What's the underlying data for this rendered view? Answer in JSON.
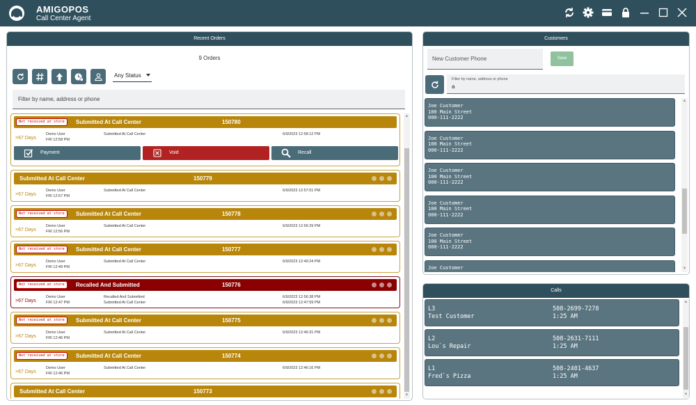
{
  "app": {
    "title": "AMIGOPOS",
    "subtitle": "Call Center Agent"
  },
  "titlebar_icons": [
    "sync-icon",
    "gear-icon",
    "card-icon",
    "lock-icon",
    "minimize-icon",
    "maximize-icon",
    "close-icon"
  ],
  "orders": {
    "header": "Recent Orders",
    "count": "9 Orders",
    "status_filter": "Any Status",
    "filter_placeholder": "Filter by name, address or phone",
    "toolbar_icons": [
      "refresh-icon",
      "hash-icon",
      "upload-icon",
      "clock-icon",
      "person-icon"
    ],
    "actions": {
      "payment": "Payment",
      "void": "Void",
      "recall": "Recall"
    },
    "items": [
      {
        "badge": "Not received at store",
        "status": "Submitted At Call Center",
        "number": "150780",
        "age": ">67 Days",
        "user": "Demo User",
        "time": "FRI 12:58 PM",
        "info": [
          "Submitted At Call Center"
        ],
        "dates": [
          "6/9/2023 12:58:12 PM"
        ],
        "color": "#b8860b"
      },
      {
        "badge": "",
        "status": "Submitted At Call Center",
        "number": "150779",
        "age": ">67 Days",
        "user": "Demo User",
        "time": "FRI 12:57 PM",
        "info": [
          "Submitted At Call Center"
        ],
        "dates": [
          "6/9/2023 12:57:01 PM"
        ],
        "color": "#b8860b"
      },
      {
        "badge": "Not received at store",
        "status": "Submitted At Call Center",
        "number": "150778",
        "age": ">67 Days",
        "user": "Demo User",
        "time": "FRI 12:56 PM",
        "info": [
          "Submitted At Call Center"
        ],
        "dates": [
          "6/9/2023 12:56:29 PM"
        ],
        "color": "#b8860b"
      },
      {
        "badge": "Not received at store",
        "status": "Submitted At Call Center",
        "number": "150777",
        "age": ">67 Days",
        "user": "Demo User",
        "time": "FRI 12:49 PM",
        "info": [
          "Submitted At Call Center"
        ],
        "dates": [
          "6/9/2023 12:49:24 PM"
        ],
        "color": "#b8860b"
      },
      {
        "badge": "Not received at store",
        "status": "Recalled And Submitted",
        "number": "150776",
        "age": ">67 Days",
        "user": "Demo User",
        "time": "FRI 12:47 PM",
        "info": [
          "Recalled And Submitted",
          "Submitted At Call Center"
        ],
        "dates": [
          "6/9/2023 12:56:38 PM",
          "6/9/2023 12:47:59 PM"
        ],
        "color": "#8b0000"
      },
      {
        "badge": "Not received at store",
        "status": "Submitted At Call Center",
        "number": "150775",
        "age": ">67 Days",
        "user": "Demo User",
        "time": "FRI 12:46 PM",
        "info": [
          "Submitted At Call Center"
        ],
        "dates": [
          "6/9/2023 12:46:31 PM"
        ],
        "color": "#b8860b"
      },
      {
        "badge": "Not received at store",
        "status": "Submitted At Call Center",
        "number": "150774",
        "age": ">67 Days",
        "user": "Demo User",
        "time": "FRI 12:46 PM",
        "info": [
          "Submitted At Call Center"
        ],
        "dates": [
          "6/9/2023 12:46:16 PM"
        ],
        "color": "#b8860b"
      },
      {
        "badge": "",
        "status": "Submitted At Call Center",
        "number": "150773",
        "age": "",
        "user": "",
        "time": "",
        "info": [],
        "dates": [],
        "color": "#b8860b"
      }
    ]
  },
  "customers": {
    "header": "Customers",
    "phone_placeholder": "New Customer Phone",
    "save_label": "Save",
    "filter_label": "Filter by name, address or phone",
    "filter_value": "a",
    "items": [
      {
        "name": "Joe Customer",
        "address": "100 Main Street",
        "phone": "000-111-2222"
      },
      {
        "name": "Joe Customer",
        "address": "100 Main Street",
        "phone": "000-111-2222"
      },
      {
        "name": "Joe Customer",
        "address": "100 Main Street",
        "phone": "000-111-2222"
      },
      {
        "name": "Joe Customer",
        "address": "100 Main Street",
        "phone": "000-111-2222"
      },
      {
        "name": "Joe Customer",
        "address": "100 Main Street",
        "phone": "000-111-2222"
      },
      {
        "name": "Joe Customer",
        "address": "",
        "phone": ""
      }
    ]
  },
  "calls": {
    "header": "Calls",
    "items": [
      {
        "line": "L3",
        "name": "Test Customer",
        "phone": "508-2699-7278",
        "time": "1:25 AM"
      },
      {
        "line": "L2",
        "name": "Lou`s Repair",
        "phone": "508-2631-7111",
        "time": "1:25 AM"
      },
      {
        "line": "L1",
        "name": "Fred`s Pizza",
        "phone": "508-2401-4637",
        "time": "1:25 AM"
      }
    ]
  },
  "colors": {
    "title_bar": "#2f4f5c",
    "submitted": "#b8860b",
    "recalled": "#8b0000",
    "void": "#b22222",
    "button": "#4a6b78",
    "save": "#8fc29d"
  }
}
